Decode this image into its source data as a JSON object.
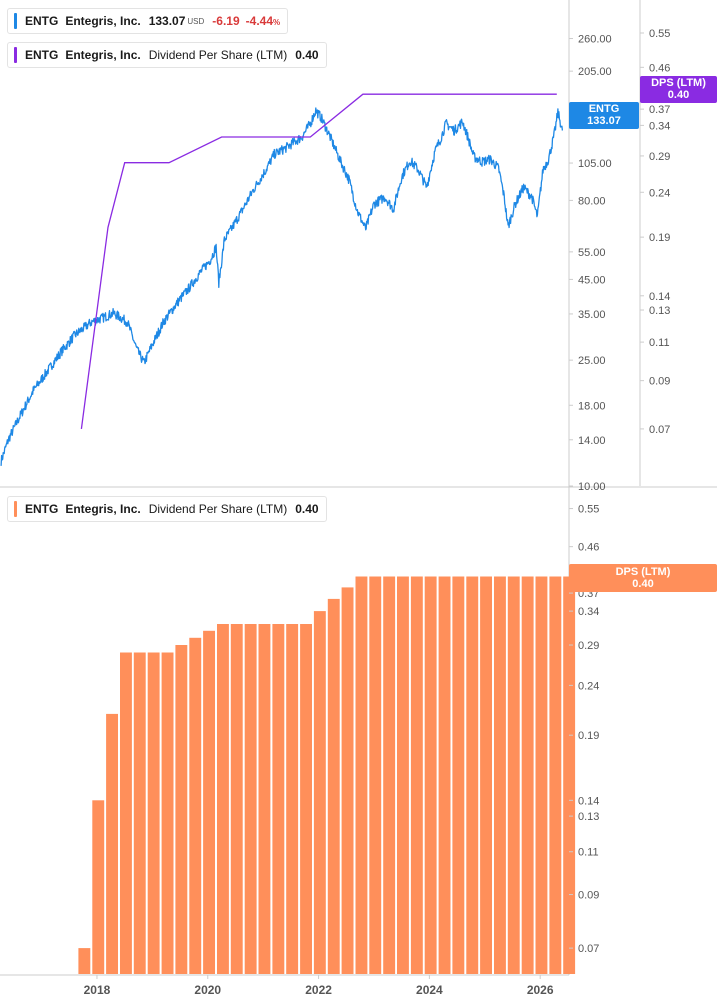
{
  "colors": {
    "price": "#1e88e5",
    "dps_line": "#8a2be2",
    "bars": "#ff8f5a",
    "axis_text": "#555555",
    "divider": "#cccccc"
  },
  "legend_price": {
    "ticker": "ENTG",
    "name": "Entegris, Inc.",
    "value": "133.07",
    "currency": "USD",
    "change": "-6.19",
    "change_pct": "-4.44",
    "pct_sign": "%"
  },
  "legend_dps_top": {
    "ticker": "ENTG",
    "name": "Entegris, Inc.",
    "metric": "Dividend Per Share (LTM)",
    "value": "0.40"
  },
  "legend_dps_bottom": {
    "ticker": "ENTG",
    "name": "Entegris, Inc.",
    "metric": "Dividend Per Share (LTM)",
    "value": "0.40"
  },
  "tags": {
    "price_ticker": "ENTG",
    "price_value": "133.07",
    "dps_label": "DPS (LTM)",
    "dps_value": "0.40",
    "bar_label": "DPS (LTM)",
    "bar_value": "0.40"
  },
  "chart_data": [
    {
      "type": "line",
      "panel": "top",
      "scale": "log",
      "x_range": [
        2016.25,
        2026.52
      ],
      "y_left_range": [
        10,
        320
      ],
      "y_left_ticks": [
        "10.00",
        "14.00",
        "18.00",
        "25.00",
        "35.00",
        "45.00",
        "55.00",
        "80.00",
        "105.00",
        "150.00",
        "205.00",
        "260.00"
      ],
      "y_right_range": [
        0.052,
        0.62
      ],
      "y_right_ticks": [
        "0.07",
        "0.09",
        "0.11",
        "0.13",
        "0.14",
        "0.19",
        "0.24",
        "0.29",
        "0.34",
        "0.37",
        "0.46",
        "0.55"
      ],
      "grid": false,
      "series": [
        {
          "axis": "left",
          "points": [
            [
              2016.27,
              12
            ],
            [
              2016.4,
              14
            ],
            [
              2016.6,
              16.5
            ],
            [
              2016.85,
              20
            ],
            [
              2017.1,
              23
            ],
            [
              2017.35,
              26.5
            ],
            [
              2017.6,
              30
            ],
            [
              2017.9,
              33
            ],
            [
              2018.1,
              34
            ],
            [
              2018.3,
              35.2
            ],
            [
              2018.55,
              33
            ],
            [
              2018.72,
              27
            ],
            [
              2018.85,
              24.5
            ],
            [
              2019.0,
              28
            ],
            [
              2019.2,
              33
            ],
            [
              2019.45,
              38
            ],
            [
              2019.65,
              42
            ],
            [
              2019.85,
              47
            ],
            [
              2020.05,
              52
            ],
            [
              2020.15,
              57
            ],
            [
              2020.2,
              44
            ],
            [
              2020.3,
              60
            ],
            [
              2020.45,
              66
            ],
            [
              2020.65,
              76
            ],
            [
              2020.85,
              88
            ],
            [
              2021.05,
              100
            ],
            [
              2021.2,
              112
            ],
            [
              2021.4,
              117
            ],
            [
              2021.55,
              122
            ],
            [
              2021.7,
              127
            ],
            [
              2021.85,
              140
            ],
            [
              2021.95,
              154
            ],
            [
              2022.05,
              146
            ],
            [
              2022.2,
              128
            ],
            [
              2022.4,
              106
            ],
            [
              2022.55,
              93
            ],
            [
              2022.7,
              74
            ],
            [
              2022.85,
              65
            ],
            [
              2023.0,
              78
            ],
            [
              2023.2,
              82
            ],
            [
              2023.35,
              75
            ],
            [
              2023.5,
              95
            ],
            [
              2023.65,
              107
            ],
            [
              2023.8,
              100
            ],
            [
              2023.95,
              88
            ],
            [
              2024.1,
              114
            ],
            [
              2024.2,
              125
            ],
            [
              2024.3,
              140
            ],
            [
              2024.45,
              133
            ],
            [
              2024.6,
              142
            ],
            [
              2024.7,
              126
            ],
            [
              2024.8,
              110
            ],
            [
              2024.95,
              106
            ],
            [
              2025.1,
              108
            ],
            [
              2025.25,
              101
            ],
            [
              2025.35,
              82
            ],
            [
              2025.42,
              66
            ],
            [
              2025.55,
              78
            ],
            [
              2025.7,
              88
            ],
            [
              2025.85,
              82
            ],
            [
              2025.95,
              71
            ],
            [
              2026.05,
              100
            ],
            [
              2026.15,
              108
            ],
            [
              2026.25,
              128
            ],
            [
              2026.32,
              152
            ],
            [
              2026.4,
              133.07
            ]
          ]
        },
        {
          "axis": "right",
          "points": [
            [
              2017.72,
              0.07
            ],
            [
              2018.2,
              0.2
            ],
            [
              2018.5,
              0.28
            ],
            [
              2019.3,
              0.28
            ],
            [
              2020.25,
              0.32
            ],
            [
              2021.85,
              0.32
            ],
            [
              2022.8,
              0.4
            ],
            [
              2026.3,
              0.4
            ]
          ]
        }
      ]
    },
    {
      "type": "bar",
      "panel": "bottom",
      "scale": "log",
      "x_ticks": [
        "2018",
        "2020",
        "2022",
        "2024",
        "2026"
      ],
      "y_range": [
        0.062,
        0.6
      ],
      "y_ticks": [
        "0.07",
        "0.09",
        "0.11",
        "0.13",
        "0.14",
        "0.19",
        "0.24",
        "0.29",
        "0.34",
        "0.37",
        "0.46",
        "0.55"
      ],
      "grid": false,
      "bar_start": 2017.72,
      "bar_step": 0.25,
      "values": [
        0.07,
        0.14,
        0.21,
        0.28,
        0.28,
        0.28,
        0.28,
        0.29,
        0.3,
        0.31,
        0.32,
        0.32,
        0.32,
        0.32,
        0.32,
        0.32,
        0.32,
        0.34,
        0.36,
        0.38,
        0.4,
        0.4,
        0.4,
        0.4,
        0.4,
        0.4,
        0.4,
        0.4,
        0.4,
        0.4,
        0.4,
        0.4,
        0.4,
        0.4,
        0.4,
        0.4
      ]
    }
  ]
}
